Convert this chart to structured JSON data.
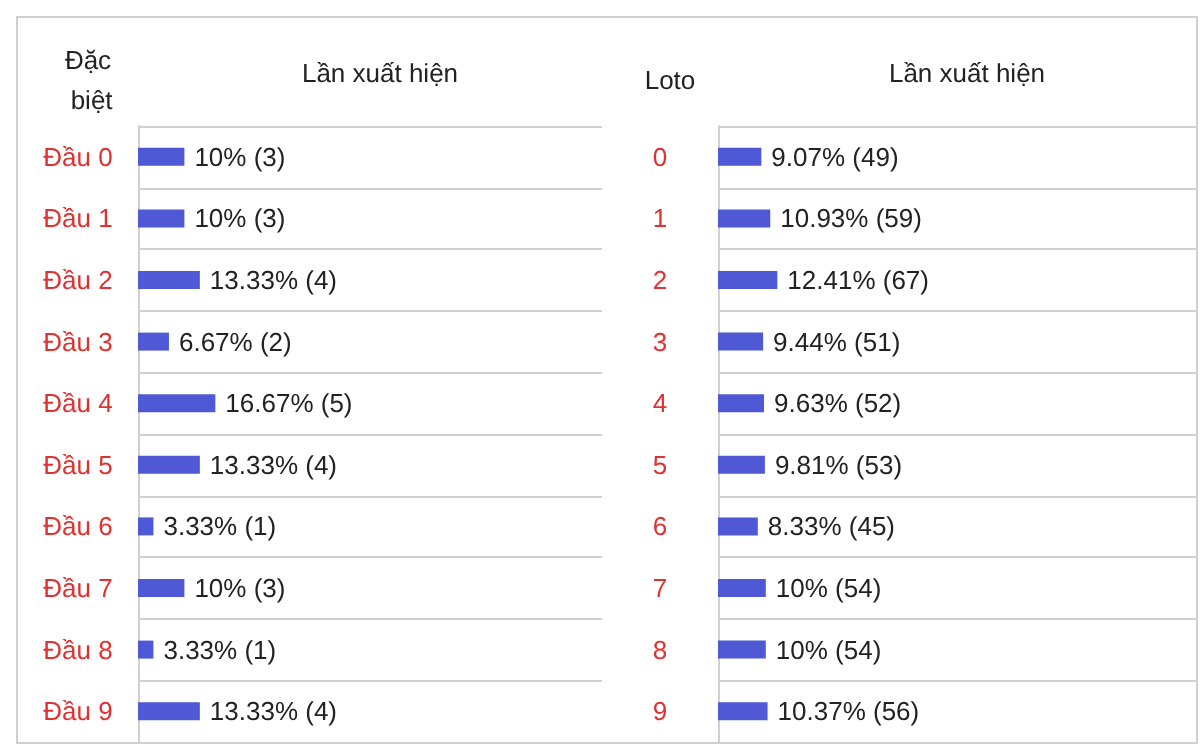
{
  "chart_data": [
    {
      "type": "bar",
      "orientation": "horizontal",
      "ylabel": "Đặc biệt",
      "xlabel": "Lần xuất hiện",
      "categories": [
        "Đầu 0",
        "Đầu 1",
        "Đầu 2",
        "Đầu 3",
        "Đầu 4",
        "Đầu 5",
        "Đầu 6",
        "Đầu 7",
        "Đầu 8",
        "Đầu 9"
      ],
      "values": [
        10,
        10,
        13.33,
        6.67,
        16.67,
        13.33,
        3.33,
        10,
        3.33,
        13.33
      ],
      "value_labels": [
        "10% (3)",
        "10% (3)",
        "13.33% (4)",
        "6.67% (2)",
        "16.67% (5)",
        "13.33% (4)",
        "3.33% (1)",
        "10% (3)",
        "3.33% (1)",
        "13.33% (4)"
      ],
      "color": "#4f59d6",
      "xlim": [
        0,
        100
      ],
      "tick_labels": "y",
      "grid": "y"
    },
    {
      "type": "bar",
      "orientation": "horizontal",
      "ylabel": "Loto",
      "xlabel": "Lần xuất hiện",
      "categories": [
        "0",
        "1",
        "2",
        "3",
        "4",
        "5",
        "6",
        "7",
        "8",
        "9"
      ],
      "values": [
        9.07,
        10.93,
        12.41,
        9.44,
        9.63,
        9.81,
        8.33,
        10,
        10,
        10.37
      ],
      "value_labels": [
        "9.07% (49)",
        "10.93% (59)",
        "12.41% (67)",
        "9.44% (51)",
        "9.63% (52)",
        "9.81% (53)",
        "8.33% (45)",
        "10% (54)",
        "10% (54)",
        "10.37% (56)"
      ],
      "color": "#4f59d6",
      "xlim": [
        0,
        100
      ],
      "tick_labels": "y",
      "grid": "y"
    }
  ]
}
